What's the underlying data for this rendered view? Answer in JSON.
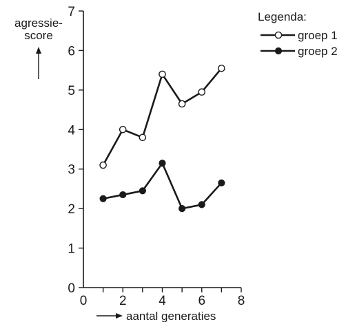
{
  "chart_data": {
    "type": "line",
    "title": "",
    "ylabel_lines": [
      "agressie-",
      "score"
    ],
    "xlabel": "aantal generaties",
    "xlim": [
      0,
      8
    ],
    "ylim": [
      0,
      7
    ],
    "xticks": [
      0,
      2,
      4,
      6,
      8
    ],
    "yticks": [
      0,
      1,
      2,
      3,
      4,
      5,
      6,
      7
    ],
    "x": [
      1,
      2,
      3,
      4,
      5,
      6,
      7
    ],
    "grid": false,
    "legend_position": "top-right",
    "legend_title": "Legenda:",
    "series": [
      {
        "name": "groep 1",
        "marker": "open-circle",
        "values": [
          3.1,
          4.0,
          3.8,
          5.4,
          4.65,
          4.95,
          5.55
        ]
      },
      {
        "name": "groep 2",
        "marker": "filled-circle",
        "values": [
          2.25,
          2.35,
          2.45,
          3.15,
          2.0,
          2.1,
          2.65
        ]
      }
    ],
    "colors": {
      "ink": "#1a1a1a",
      "background": "#ffffff"
    }
  }
}
